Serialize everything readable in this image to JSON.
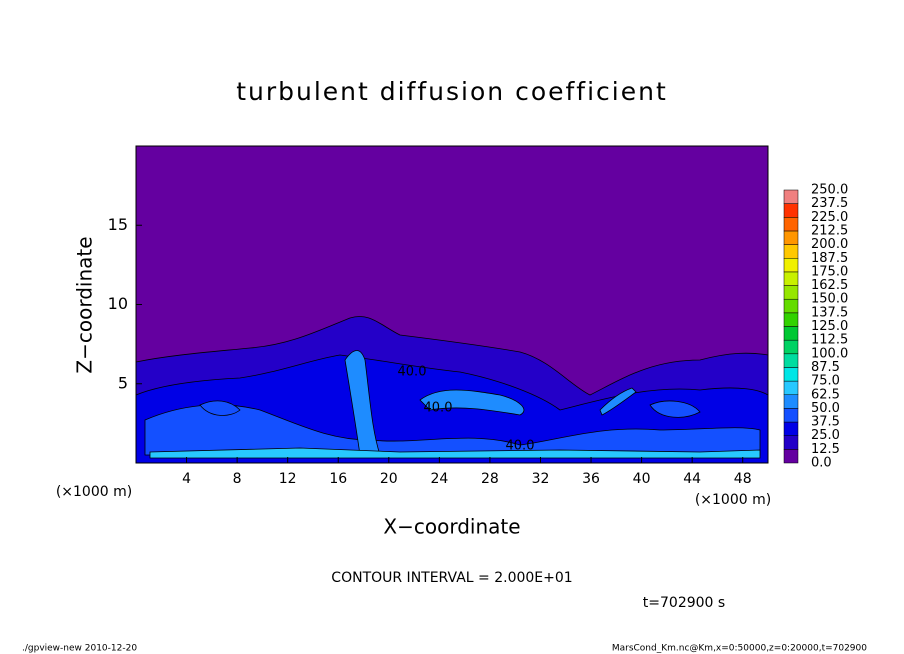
{
  "chart_data": {
    "type": "contour",
    "title": "turbulent diffusion coefficient",
    "xlabel": "X−coordinate",
    "ylabel": "Z−coordinate",
    "xunit": "(×1000 m)",
    "yunit": "(×1000 m)",
    "xlim": [
      0,
      50
    ],
    "ylim": [
      0,
      20
    ],
    "xticks": [
      4,
      8,
      12,
      16,
      20,
      24,
      28,
      32,
      36,
      40,
      44,
      48
    ],
    "yticks": [
      5,
      10,
      15
    ],
    "levels": [
      {
        "value": 0,
        "label": "0.0"
      },
      {
        "value": 12.5,
        "label": "12.5"
      },
      {
        "value": 25,
        "label": "25.0"
      },
      {
        "value": 37.5,
        "label": "37.5"
      },
      {
        "value": 50,
        "label": "50.0"
      },
      {
        "value": 62.5,
        "label": "62.5"
      },
      {
        "value": 75,
        "label": "75.0"
      },
      {
        "value": 87.5,
        "label": "87.5"
      },
      {
        "value": 100,
        "label": "100.0"
      },
      {
        "value": 112.5,
        "label": "112.5"
      },
      {
        "value": 125,
        "label": "125.0"
      },
      {
        "value": 137.5,
        "label": "137.5"
      },
      {
        "value": 150,
        "label": "150.0"
      },
      {
        "value": 162.5,
        "label": "162.5"
      },
      {
        "value": 175,
        "label": "175.0"
      },
      {
        "value": 187.5,
        "label": "187.5"
      },
      {
        "value": 200,
        "label": "200.0"
      },
      {
        "value": 212.5,
        "label": "212.5"
      },
      {
        "value": 225,
        "label": "225.0"
      },
      {
        "value": 237.5,
        "label": "237.5"
      },
      {
        "value": 250,
        "label": "250.0"
      }
    ],
    "colors": [
      "#6400a0",
      "#2400c8",
      "#0000e6",
      "#1450ff",
      "#1e8cff",
      "#28c8ff",
      "#00e6e6",
      "#00dca0",
      "#00d264",
      "#00c832",
      "#32d200",
      "#64dc00",
      "#96e600",
      "#c8f000",
      "#f0f000",
      "#ffc800",
      "#ff9600",
      "#ff6400",
      "#ff3200",
      "#f08080"
    ],
    "contour_labels": [
      "40.0",
      "40.0",
      "40.0"
    ],
    "contour_interval": "CONTOUR INTERVAL = 2.000E+01",
    "time": "t=702900 s",
    "footer_left": "./gpview-new   2010-12-20",
    "footer_right": "MarsCond_Km.nc@Km,x=0:50000,z=0:20000,t=702900"
  }
}
